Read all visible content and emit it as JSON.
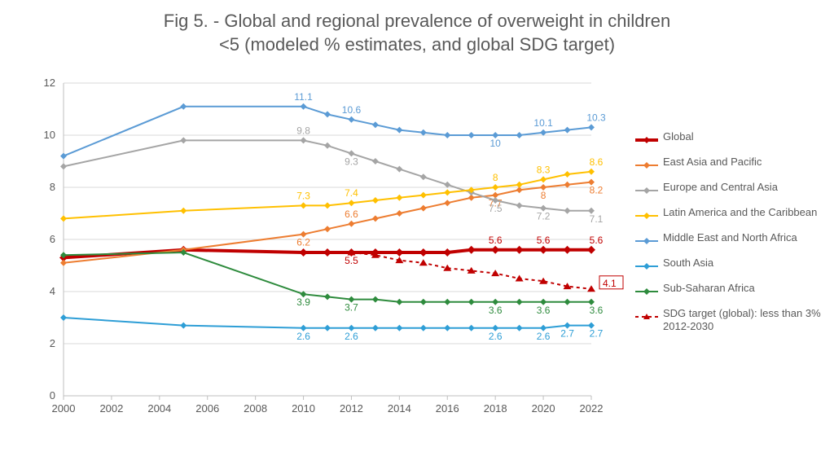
{
  "title_line1": "Fig 5. - Global and regional prevalence of overweight in children",
  "title_line2": "<5 (modeled % estimates, and global SDG target)",
  "title_fontsize": 22,
  "title_color": "#595959",
  "background_color": "#ffffff",
  "axis": {
    "x": {
      "min": 2000,
      "max": 2022,
      "tick_step": 2,
      "ticks": [
        2000,
        2002,
        2004,
        2006,
        2008,
        2010,
        2012,
        2014,
        2016,
        2018,
        2020,
        2022
      ]
    },
    "y": {
      "min": 0,
      "max": 12,
      "tick_step": 2,
      "ticks": [
        0,
        2,
        4,
        6,
        8,
        10,
        12
      ]
    },
    "tick_fontsize": 13,
    "tick_color": "#595959",
    "gridline_color": "#d9d9d9",
    "axis_line_color": "#bfbfbf"
  },
  "series": [
    {
      "name": "Global",
      "color": "#c00000",
      "line_width": 4,
      "marker": "diamond",
      "marker_size": 5,
      "dash": "none",
      "points": [
        {
          "x": 2000,
          "y": 5.3
        },
        {
          "x": 2005,
          "y": 5.6
        },
        {
          "x": 2010,
          "y": 5.5
        },
        {
          "x": 2011,
          "y": 5.5
        },
        {
          "x": 2012,
          "y": 5.5,
          "label": "5.5",
          "label_dy": 14
        },
        {
          "x": 2013,
          "y": 5.5
        },
        {
          "x": 2014,
          "y": 5.5
        },
        {
          "x": 2015,
          "y": 5.5
        },
        {
          "x": 2016,
          "y": 5.5
        },
        {
          "x": 2017,
          "y": 5.6
        },
        {
          "x": 2018,
          "y": 5.6,
          "label": "5.6",
          "label_dy": -8
        },
        {
          "x": 2019,
          "y": 5.6
        },
        {
          "x": 2020,
          "y": 5.6,
          "label": "5.6",
          "label_dy": -8
        },
        {
          "x": 2021,
          "y": 5.6
        },
        {
          "x": 2022,
          "y": 5.6,
          "label": "5.6",
          "label_dy": -8,
          "label_dx": 6
        }
      ]
    },
    {
      "name": "East Asia and Pacific",
      "color": "#ed7d31",
      "line_width": 2,
      "marker": "diamond",
      "marker_size": 4,
      "dash": "none",
      "points": [
        {
          "x": 2000,
          "y": 5.1
        },
        {
          "x": 2005,
          "y": 5.6
        },
        {
          "x": 2010,
          "y": 6.2,
          "label": "6.2",
          "label_dy": 14
        },
        {
          "x": 2011,
          "y": 6.4
        },
        {
          "x": 2012,
          "y": 6.6,
          "label": "6.6",
          "label_dy": -8
        },
        {
          "x": 2013,
          "y": 6.8
        },
        {
          "x": 2014,
          "y": 7.0
        },
        {
          "x": 2015,
          "y": 7.2
        },
        {
          "x": 2016,
          "y": 7.4
        },
        {
          "x": 2017,
          "y": 7.6
        },
        {
          "x": 2018,
          "y": 7.7,
          "label": "7.7",
          "label_dy": 14
        },
        {
          "x": 2019,
          "y": 7.9
        },
        {
          "x": 2020,
          "y": 8.0,
          "label": "8",
          "label_dy": 14
        },
        {
          "x": 2021,
          "y": 8.1
        },
        {
          "x": 2022,
          "y": 8.2,
          "label": "8.2",
          "label_dy": 14,
          "label_dx": 6
        }
      ]
    },
    {
      "name": "Europe and Central Asia",
      "color": "#a5a5a5",
      "line_width": 2,
      "marker": "diamond",
      "marker_size": 4,
      "dash": "none",
      "points": [
        {
          "x": 2000,
          "y": 8.8
        },
        {
          "x": 2005,
          "y": 9.8
        },
        {
          "x": 2010,
          "y": 9.8,
          "label": "9.8",
          "label_dy": -8
        },
        {
          "x": 2011,
          "y": 9.6
        },
        {
          "x": 2012,
          "y": 9.3,
          "label": "9.3",
          "label_dy": 14
        },
        {
          "x": 2013,
          "y": 9.0
        },
        {
          "x": 2014,
          "y": 8.7
        },
        {
          "x": 2015,
          "y": 8.4
        },
        {
          "x": 2016,
          "y": 8.1
        },
        {
          "x": 2017,
          "y": 7.8
        },
        {
          "x": 2018,
          "y": 7.5,
          "label": "7.5",
          "label_dy": 14
        },
        {
          "x": 2019,
          "y": 7.3
        },
        {
          "x": 2020,
          "y": 7.2,
          "label": "7.2",
          "label_dy": 14
        },
        {
          "x": 2021,
          "y": 7.1
        },
        {
          "x": 2022,
          "y": 7.1,
          "label": "7.1",
          "label_dy": 14,
          "label_dx": 6
        }
      ]
    },
    {
      "name": "Latin America and the Caribbean",
      "color": "#ffc000",
      "line_width": 2,
      "marker": "diamond",
      "marker_size": 4,
      "dash": "none",
      "points": [
        {
          "x": 2000,
          "y": 6.8
        },
        {
          "x": 2005,
          "y": 7.1
        },
        {
          "x": 2010,
          "y": 7.3,
          "label": "7.3",
          "label_dy": -8
        },
        {
          "x": 2011,
          "y": 7.3
        },
        {
          "x": 2012,
          "y": 7.4,
          "label": "7.4",
          "label_dy": -8
        },
        {
          "x": 2013,
          "y": 7.5
        },
        {
          "x": 2014,
          "y": 7.6
        },
        {
          "x": 2015,
          "y": 7.7
        },
        {
          "x": 2016,
          "y": 7.8
        },
        {
          "x": 2017,
          "y": 7.9
        },
        {
          "x": 2018,
          "y": 8.0,
          "label": "8",
          "label_dy": -8
        },
        {
          "x": 2019,
          "y": 8.1
        },
        {
          "x": 2020,
          "y": 8.3,
          "label": "8.3",
          "label_dy": -8
        },
        {
          "x": 2021,
          "y": 8.5
        },
        {
          "x": 2022,
          "y": 8.6,
          "label": "8.6",
          "label_dy": -8,
          "label_dx": 6
        }
      ]
    },
    {
      "name": "Middle East and North Africa",
      "color": "#5b9bd5",
      "line_width": 2,
      "marker": "diamond",
      "marker_size": 4,
      "dash": "none",
      "points": [
        {
          "x": 2000,
          "y": 9.2
        },
        {
          "x": 2005,
          "y": 11.1
        },
        {
          "x": 2010,
          "y": 11.1,
          "label": "11.1",
          "label_dy": -8
        },
        {
          "x": 2011,
          "y": 10.8
        },
        {
          "x": 2012,
          "y": 10.6,
          "label": "10.6",
          "label_dy": -8
        },
        {
          "x": 2013,
          "y": 10.4
        },
        {
          "x": 2014,
          "y": 10.2
        },
        {
          "x": 2015,
          "y": 10.1
        },
        {
          "x": 2016,
          "y": 10.0
        },
        {
          "x": 2017,
          "y": 10.0
        },
        {
          "x": 2018,
          "y": 10.0,
          "label": "10",
          "label_dy": 14
        },
        {
          "x": 2019,
          "y": 10.0
        },
        {
          "x": 2020,
          "y": 10.1,
          "label": "10.1",
          "label_dy": -8
        },
        {
          "x": 2021,
          "y": 10.2
        },
        {
          "x": 2022,
          "y": 10.3,
          "label": "10.3",
          "label_dy": -8,
          "label_dx": 6
        }
      ]
    },
    {
      "name": "South Asia",
      "color": "#2e9ed6",
      "line_width": 2,
      "marker": "diamond",
      "marker_size": 4,
      "dash": "none",
      "points": [
        {
          "x": 2000,
          "y": 3.0
        },
        {
          "x": 2005,
          "y": 2.7
        },
        {
          "x": 2010,
          "y": 2.6,
          "label": "2.6",
          "label_dy": 14
        },
        {
          "x": 2011,
          "y": 2.6
        },
        {
          "x": 2012,
          "y": 2.6,
          "label": "2.6",
          "label_dy": 14
        },
        {
          "x": 2013,
          "y": 2.6
        },
        {
          "x": 2014,
          "y": 2.6
        },
        {
          "x": 2015,
          "y": 2.6
        },
        {
          "x": 2016,
          "y": 2.6
        },
        {
          "x": 2017,
          "y": 2.6
        },
        {
          "x": 2018,
          "y": 2.6,
          "label": "2.6",
          "label_dy": 14
        },
        {
          "x": 2019,
          "y": 2.6
        },
        {
          "x": 2020,
          "y": 2.6,
          "label": "2.6",
          "label_dy": 14
        },
        {
          "x": 2021,
          "y": 2.7,
          "label": "2.7",
          "label_dy": 14
        },
        {
          "x": 2022,
          "y": 2.7,
          "label": "2.7",
          "label_dy": 14,
          "label_dx": 6
        }
      ]
    },
    {
      "name": "Sub-Saharan Africa",
      "color": "#2e8b3d",
      "line_width": 2,
      "marker": "diamond",
      "marker_size": 4,
      "dash": "none",
      "points": [
        {
          "x": 2000,
          "y": 5.4
        },
        {
          "x": 2005,
          "y": 5.5
        },
        {
          "x": 2010,
          "y": 3.9,
          "label": "3.9",
          "label_dy": 14
        },
        {
          "x": 2011,
          "y": 3.8
        },
        {
          "x": 2012,
          "y": 3.7,
          "label": "3.7",
          "label_dy": 14
        },
        {
          "x": 2013,
          "y": 3.7
        },
        {
          "x": 2014,
          "y": 3.6
        },
        {
          "x": 2015,
          "y": 3.6
        },
        {
          "x": 2016,
          "y": 3.6
        },
        {
          "x": 2017,
          "y": 3.6
        },
        {
          "x": 2018,
          "y": 3.6,
          "label": "3.6",
          "label_dy": 14
        },
        {
          "x": 2019,
          "y": 3.6
        },
        {
          "x": 2020,
          "y": 3.6,
          "label": "3.6",
          "label_dy": 14
        },
        {
          "x": 2021,
          "y": 3.6
        },
        {
          "x": 2022,
          "y": 3.6,
          "label": "3.6",
          "label_dy": 14,
          "label_dx": 6
        }
      ]
    },
    {
      "name": "SDG target (global): less than 3% 2012-2030",
      "color": "#c00000",
      "line_width": 2,
      "marker": "triangle",
      "marker_size": 5,
      "dash": "4,4",
      "points": [
        {
          "x": 2012,
          "y": 5.5
        },
        {
          "x": 2013,
          "y": 5.4
        },
        {
          "x": 2014,
          "y": 5.2
        },
        {
          "x": 2015,
          "y": 5.1
        },
        {
          "x": 2016,
          "y": 4.9
        },
        {
          "x": 2017,
          "y": 4.8
        },
        {
          "x": 2018,
          "y": 4.7
        },
        {
          "x": 2019,
          "y": 4.5
        },
        {
          "x": 2020,
          "y": 4.4
        },
        {
          "x": 2021,
          "y": 4.2
        },
        {
          "x": 2022,
          "y": 4.1,
          "label": "4.1",
          "label_dy": -3,
          "label_dx": 12,
          "boxed": true
        }
      ]
    }
  ],
  "legend": {
    "fontsize": 13,
    "text_color": "#595959"
  },
  "data_label_fontsize": 12
}
